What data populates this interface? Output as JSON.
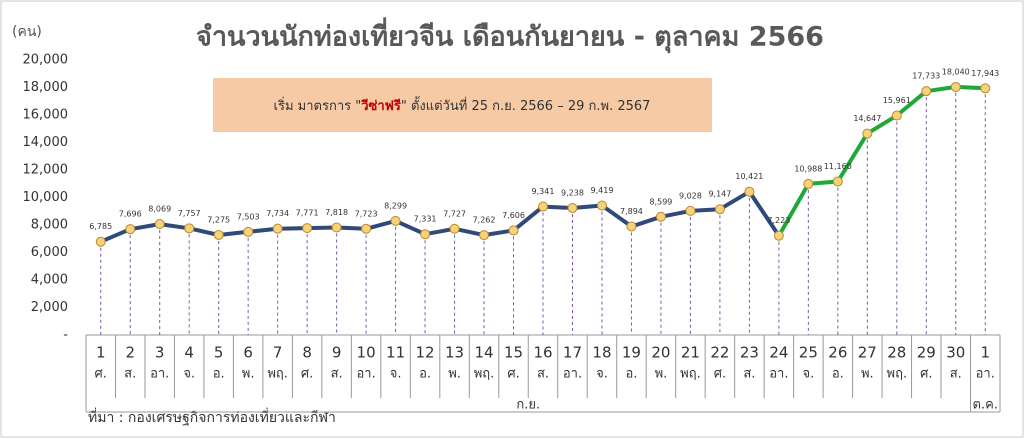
{
  "chart_data": {
    "type": "line",
    "title": "จำนวนนักท่องเที่ยวจีน เดือนกันยายน - ตุลาคม 2566",
    "y_unit": "(คน)",
    "note": {
      "prefix": "เริ่ม มาตรการ \"",
      "emphasis": "วีซ่าฟรี",
      "suffix": "\" ตั้งแต่วันที่ 25 ก.ย. 2566 – 29 ก.พ. 2567"
    },
    "source": "ที่มา : กองเศรษฐกิจการท่องเที่ยวและกีฬา",
    "categories": [
      "1",
      "2",
      "3",
      "4",
      "5",
      "6",
      "7",
      "8",
      "9",
      "10",
      "11",
      "12",
      "13",
      "14",
      "15",
      "16",
      "17",
      "18",
      "19",
      "20",
      "21",
      "22",
      "23",
      "24",
      "25",
      "26",
      "27",
      "28",
      "29",
      "30",
      "1"
    ],
    "weekdays": [
      "ศ.",
      "ส.",
      "อา.",
      "จ.",
      "อ.",
      "พ.",
      "พฤ.",
      "ศ.",
      "ส.",
      "อา.",
      "จ.",
      "อ.",
      "พ.",
      "พฤ.",
      "ศ.",
      "ส.",
      "อา.",
      "จ.",
      "อ.",
      "พ.",
      "พฤ.",
      "ศ.",
      "ส.",
      "อา.",
      "จ.",
      "อ.",
      "พ.",
      "พฤ.",
      "ศ.",
      "ส.",
      "อา."
    ],
    "months": [
      "ก.ย.",
      "ต.ค."
    ],
    "series": [
      {
        "color": "#2f4a7a",
        "values": [
          6785,
          7696,
          8069,
          7757,
          7275,
          7503,
          7734,
          7771,
          7818,
          7723,
          8299,
          7331,
          7727,
          7262,
          7606,
          9341,
          9238,
          9419,
          7894,
          8599,
          9028,
          9147,
          10421,
          7223,
          null,
          null,
          null,
          null,
          null,
          null,
          null
        ],
        "value_labels": [
          "6,785",
          "7,696",
          "8,069",
          "7,757",
          "7,275",
          "7,503",
          "7,734",
          "7,771",
          "7,818",
          "7,723",
          "8,299",
          "7,331",
          "7,727",
          "7,262",
          "7,606",
          "9,341",
          "9,238",
          "9,419",
          "7,894",
          "8,599",
          "9,028",
          "9,147",
          "10,421",
          "7,223",
          null,
          null,
          null,
          null,
          null,
          null,
          null
        ]
      },
      {
        "color": "#1fa83a",
        "values": [
          null,
          null,
          null,
          null,
          null,
          null,
          null,
          null,
          null,
          null,
          null,
          null,
          null,
          null,
          null,
          null,
          null,
          null,
          null,
          null,
          null,
          null,
          null,
          7223,
          10988,
          11160,
          14647,
          15961,
          17733,
          18040,
          17943
        ],
        "value_labels": [
          null,
          null,
          null,
          null,
          null,
          null,
          null,
          null,
          null,
          null,
          null,
          null,
          null,
          null,
          null,
          null,
          null,
          null,
          null,
          null,
          null,
          null,
          null,
          null,
          "10,988",
          "11,160",
          "14,647",
          "15,961",
          "17,733",
          "18,040",
          "17,943"
        ]
      }
    ],
    "marker_color": "#f6d27a",
    "ylim": [
      0,
      20000
    ],
    "yticks": [
      {
        "value": 0,
        "label": "-"
      },
      {
        "value": 2000,
        "label": "2,000"
      },
      {
        "value": 4000,
        "label": "4,000"
      },
      {
        "value": 6000,
        "label": "6,000"
      },
      {
        "value": 8000,
        "label": "8,000"
      },
      {
        "value": 10000,
        "label": "10,000"
      },
      {
        "value": 12000,
        "label": "12,000"
      },
      {
        "value": 14000,
        "label": "14,000"
      },
      {
        "value": 16000,
        "label": "16,000"
      },
      {
        "value": 18000,
        "label": "18,000"
      },
      {
        "value": 20000,
        "label": "20,000"
      }
    ]
  }
}
